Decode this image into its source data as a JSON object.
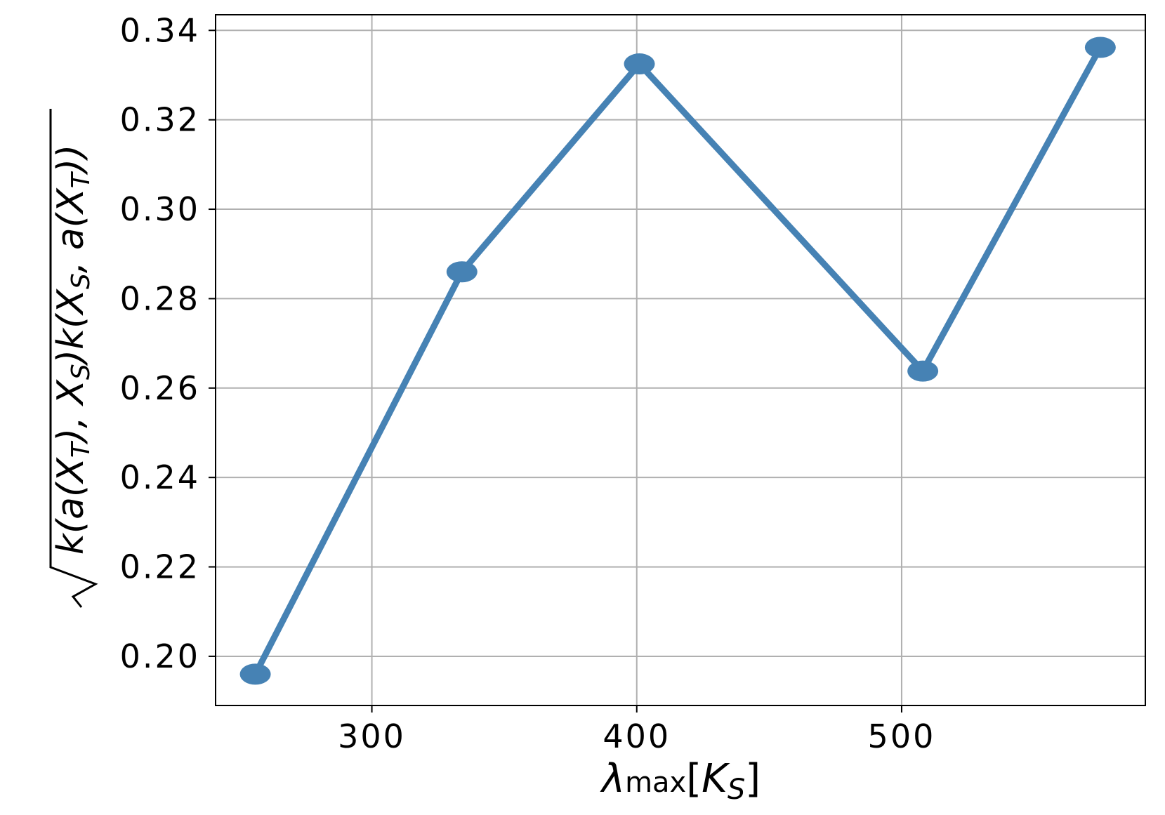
{
  "chart_data": {
    "type": "line",
    "xlabel": "λmax[KS]",
    "ylabel": "√k(a(XT),XS)k(XS,a(XT))",
    "xlim": [
      241,
      592
    ],
    "ylim": [
      0.189,
      0.3435
    ],
    "x_ticks": [
      300,
      400,
      500
    ],
    "x_tick_labels": [
      "300",
      "400",
      "500"
    ],
    "y_ticks": [
      0.2,
      0.22,
      0.24,
      0.26,
      0.28,
      0.3,
      0.32,
      0.34
    ],
    "y_tick_labels": [
      "0.20",
      "0.22",
      "0.24",
      "0.26",
      "0.28",
      "0.30",
      "0.32",
      "0.34"
    ],
    "grid": true,
    "series": [
      {
        "color": "#4682b4",
        "x": [
          256,
          334,
          401,
          508,
          575
        ],
        "y": [
          0.196,
          0.286,
          0.3325,
          0.2638,
          0.3362
        ]
      }
    ]
  }
}
